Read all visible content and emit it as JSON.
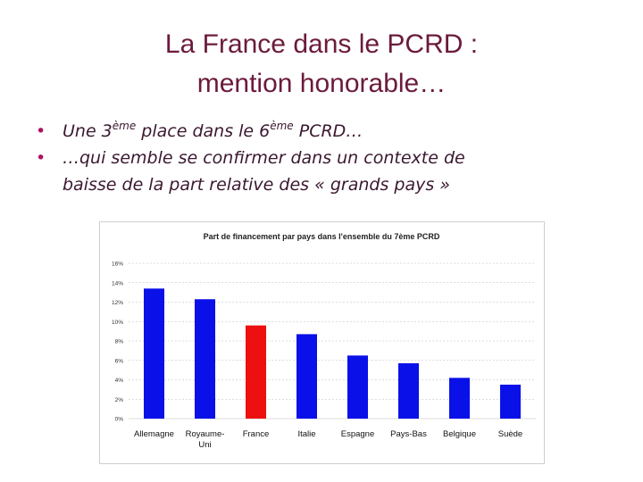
{
  "slide": {
    "title_line1": "La France dans le PCRD :",
    "title_line2": "mention honorable…",
    "bullet_char": "•",
    "bullet1": {
      "a": "Une 3",
      "sup1": "ème",
      "b": " place dans le 6",
      "sup2": "ème",
      "c": " PCRD…"
    },
    "bullet2": {
      "line1": "…qui semble se confirmer dans un contexte de",
      "line2": "baisse de la part relative des « grands pays »"
    }
  },
  "colors": {
    "title": "#6b1a3c",
    "bullet": "#b01060",
    "bar": "#0a10e8",
    "highlight": "#ee1010",
    "grid": "#bbbbbb"
  },
  "chart_data": {
    "type": "bar",
    "title": "Part de financement par pays dans l'ensemble du 7ème PCRD",
    "categories": [
      [
        "Allemagne"
      ],
      [
        "Royaume-",
        "Uni"
      ],
      [
        "France"
      ],
      [
        "Italie"
      ],
      [
        "Espagne"
      ],
      [
        "Pays-Bas"
      ],
      [
        "Belgique"
      ],
      [
        "Suède"
      ]
    ],
    "values": [
      13.4,
      12.3,
      9.6,
      8.7,
      6.5,
      5.7,
      4.2,
      3.5
    ],
    "highlight_index": 2,
    "ylim": [
      0,
      16
    ],
    "yticks": [
      0,
      2,
      4,
      6,
      8,
      10,
      12,
      14,
      16
    ],
    "ytick_labels": [
      "0%",
      "2%",
      "4%",
      "6%",
      "8%",
      "10%",
      "12%",
      "14%",
      "16%"
    ],
    "xlabel": "",
    "ylabel": "",
    "grid": true,
    "legend": "none"
  }
}
